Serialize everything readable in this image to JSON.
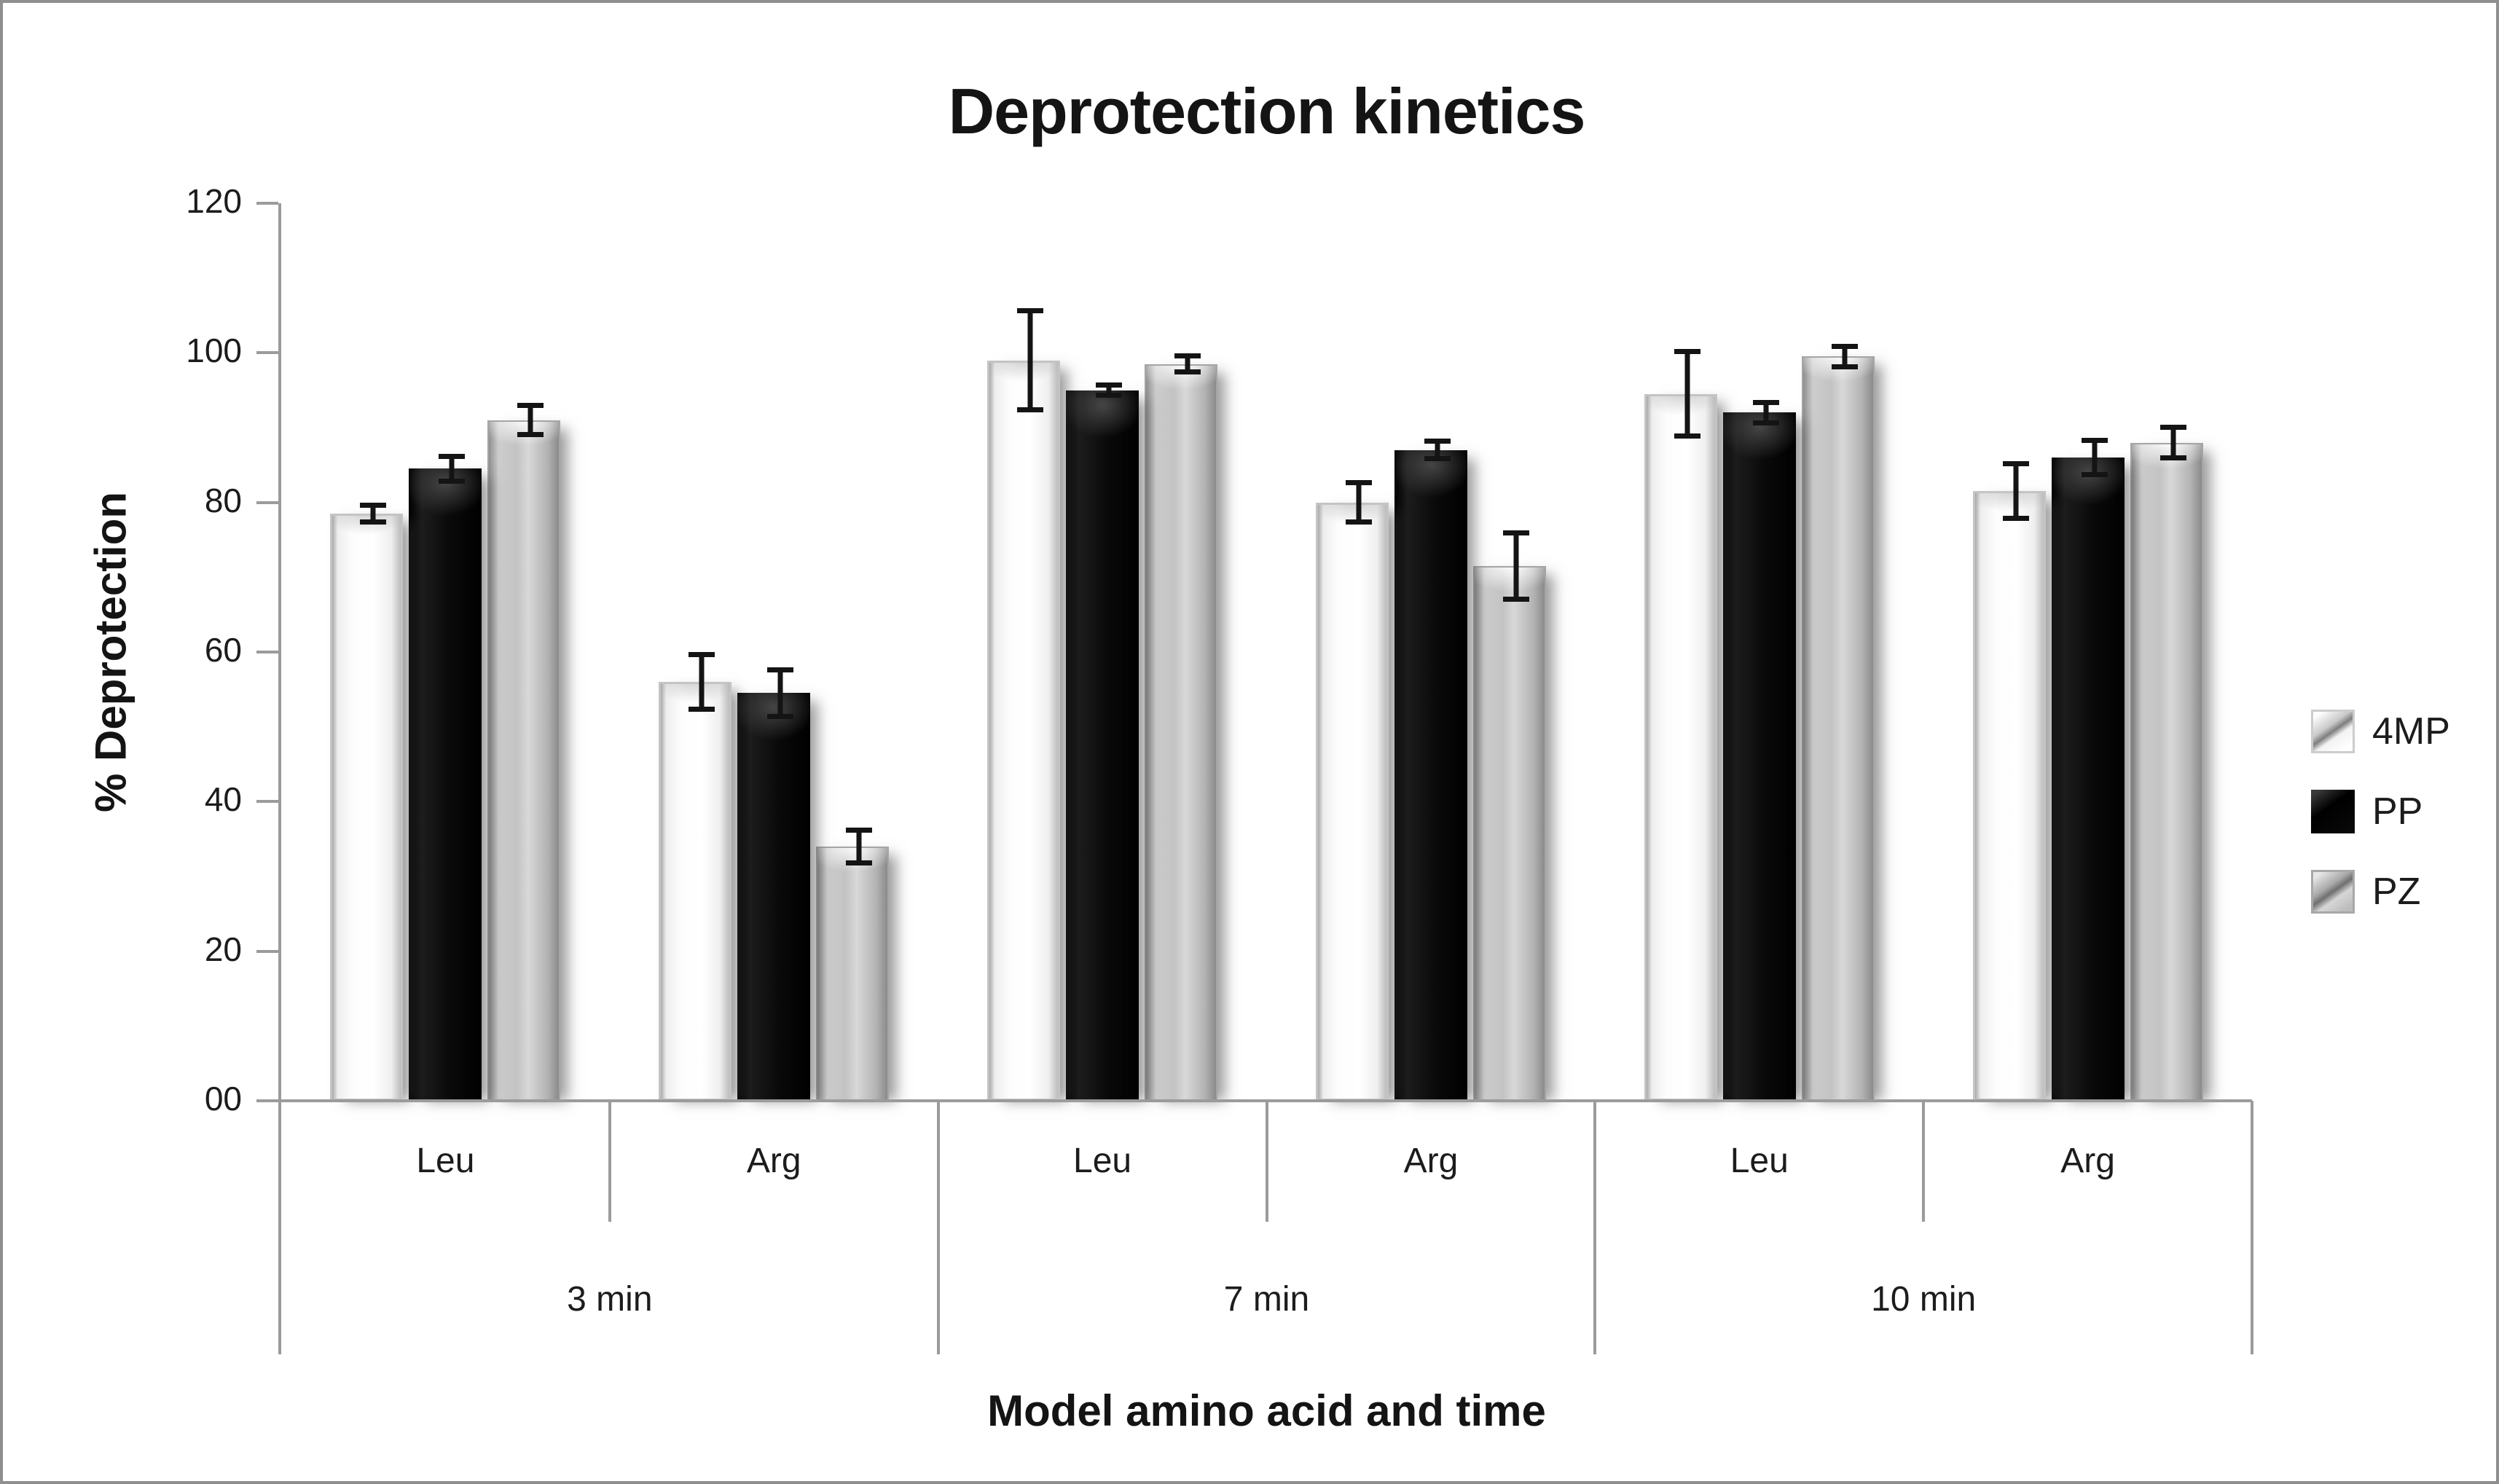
{
  "figure": {
    "title": "Deprotection kinetics",
    "border_color": "#8f8f8f",
    "axis_color": "#9b9b9b"
  },
  "chart_data": {
    "type": "bar",
    "title": "Deprotection kinetics",
    "xlabel": "Model amino acid and time",
    "ylabel": "% Deprotection",
    "ylim": [
      0,
      120
    ],
    "grid": false,
    "legend_position": "right",
    "error_bars": true,
    "y_ticks": [
      {
        "value": 120,
        "label": "120"
      },
      {
        "value": 100,
        "label": "100"
      },
      {
        "value": 80,
        "label": "80"
      },
      {
        "value": 60,
        "label": "60"
      },
      {
        "value": 40,
        "label": "40"
      },
      {
        "value": 20,
        "label": "20"
      },
      {
        "value": 0,
        "label": "00"
      }
    ],
    "groups": [
      {
        "label": "3 min",
        "categories": [
          "Leu",
          "Arg"
        ]
      },
      {
        "label": "7 min",
        "categories": [
          "Leu",
          "Arg"
        ]
      },
      {
        "label": "10 min",
        "categories": [
          "Leu",
          "Arg"
        ]
      }
    ],
    "category_order": [
      "3 min Leu",
      "3 min Arg",
      "7 min Leu",
      "7 min Arg",
      "10 min Leu",
      "10 min Arg"
    ],
    "series": [
      {
        "name": "4MP",
        "color": "#ffffff",
        "values": [
          78.5,
          56,
          99,
          80,
          94.5,
          81.5
        ],
        "errors": [
          1.5,
          4,
          7,
          3,
          6,
          4
        ]
      },
      {
        "name": "PP",
        "color": "#0a0a0a",
        "values": [
          84.5,
          54.5,
          95,
          87,
          92,
          86
        ],
        "errors": [
          2,
          3.5,
          1,
          1.5,
          1.7,
          2.6
        ]
      },
      {
        "name": "PZ",
        "color": "#bfbfbf",
        "values": [
          91,
          34,
          98.5,
          71.5,
          99.5,
          88
        ],
        "errors": [
          2.3,
          2.5,
          1.4,
          4.8,
          1.7,
          2.4
        ]
      }
    ]
  }
}
